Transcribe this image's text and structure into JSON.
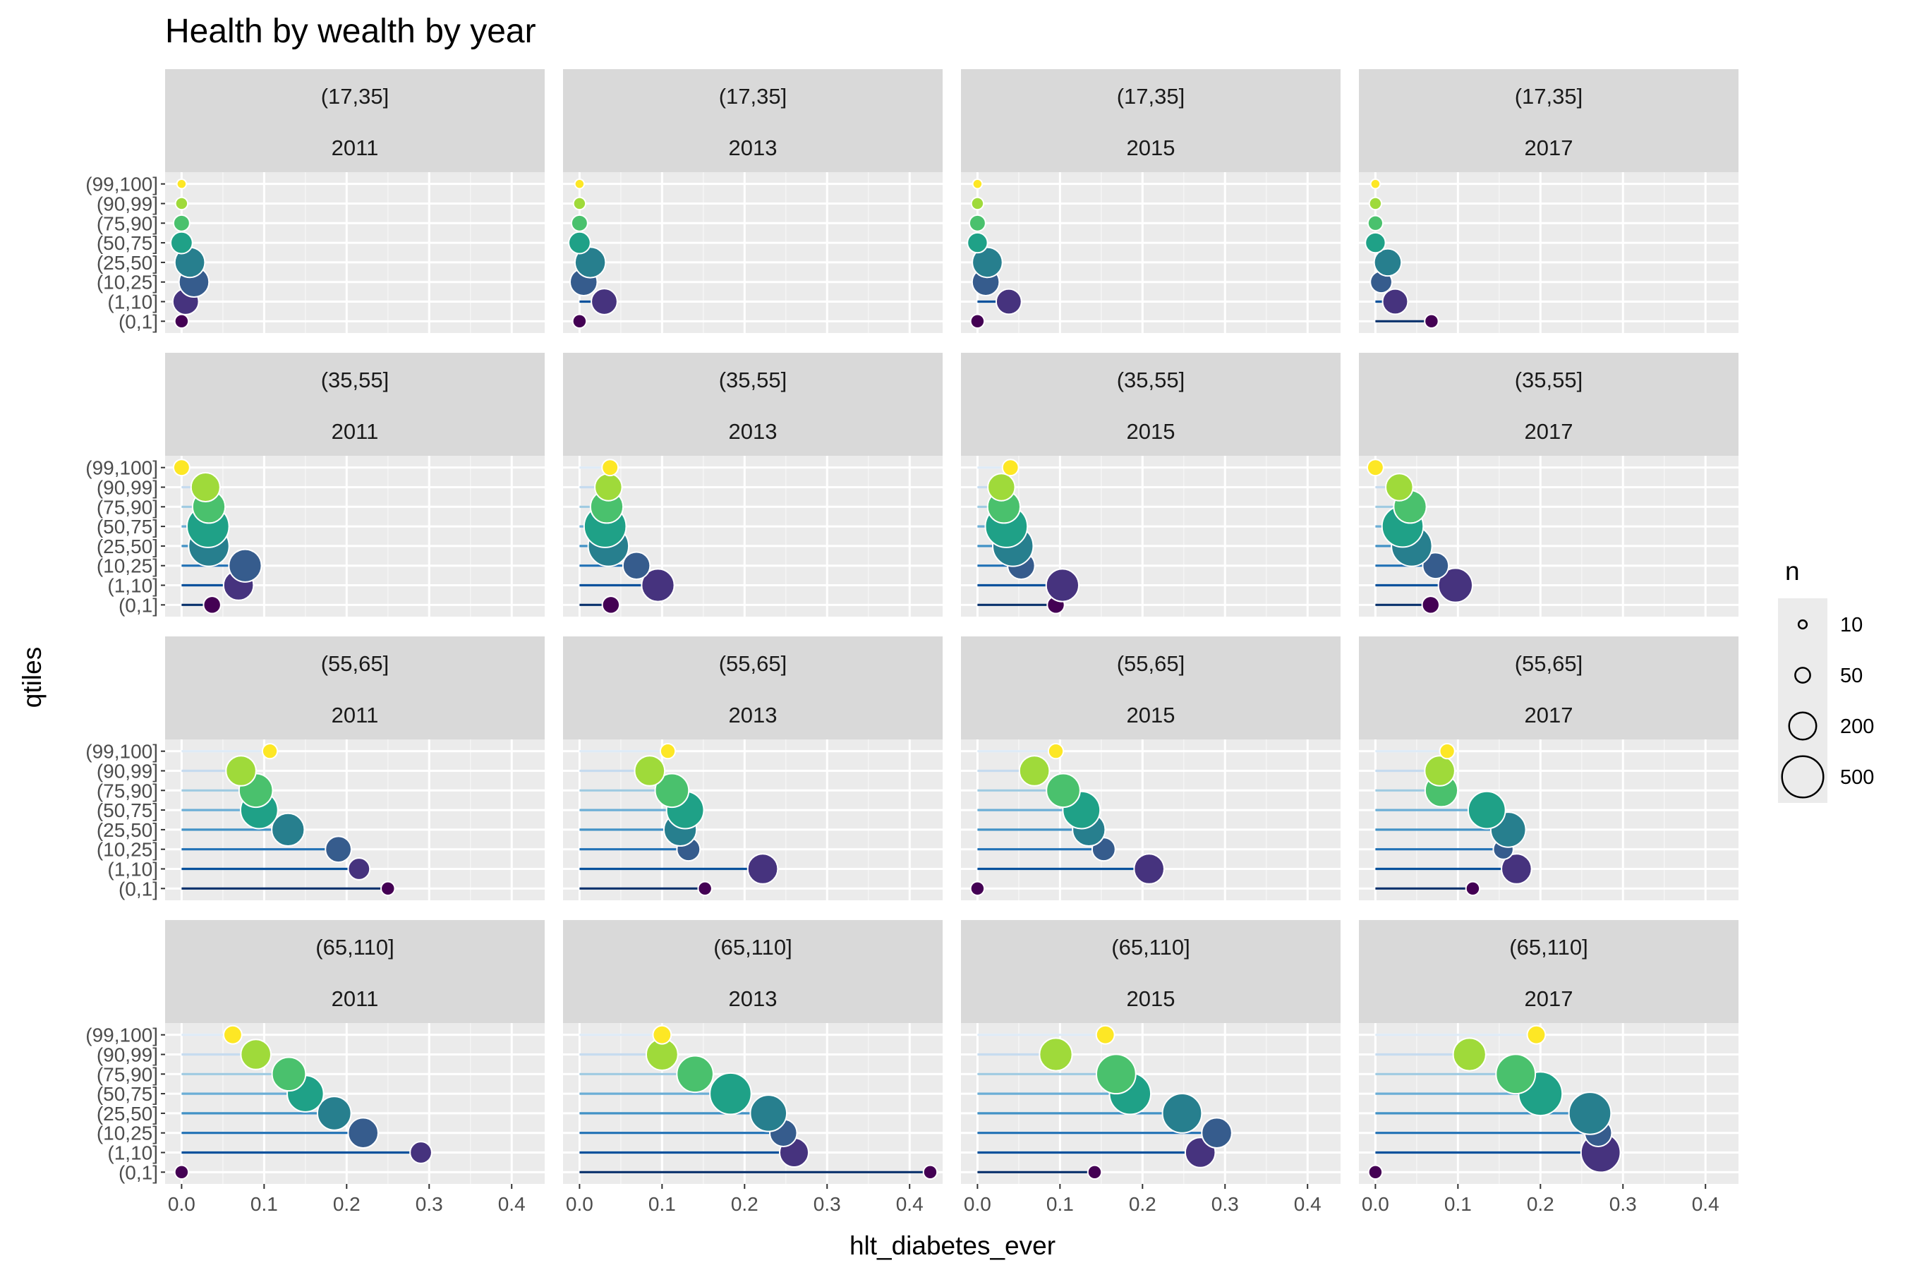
{
  "chart_data": {
    "type": "lollipop",
    "title": "Health by wealth by year",
    "xlabel": "hlt_diabetes_ever",
    "ylabel": "qtiles",
    "xlim": [
      -0.02,
      0.44
    ],
    "x_ticks": [
      "0.0",
      "0.1",
      "0.2",
      "0.3",
      "0.4"
    ],
    "x_tick_values": [
      0,
      0.1,
      0.2,
      0.3,
      0.4
    ],
    "qtiles": [
      "(0,1]",
      "(1,10]",
      "(10,25]",
      "(25,50]",
      "(50,75]",
      "(75,90]",
      "(90,99]",
      "(99,100]"
    ],
    "qtile_colors": [
      "#440154",
      "#46337E",
      "#365C8D",
      "#277F8E",
      "#1FA187",
      "#4AC16D",
      "#9FDA3A",
      "#FDE725"
    ],
    "segment_colors": [
      "#08306B",
      "#08519C",
      "#2171B5",
      "#4292C6",
      "#6BAED6",
      "#9ECAE1",
      "#C6DBEF",
      "#DEEBF7"
    ],
    "age_groups": [
      "(17,35]",
      "(35,55]",
      "(55,65]",
      "(65,110]"
    ],
    "years": [
      "2011",
      "2013",
      "2015",
      "2017"
    ],
    "grid": true,
    "legend": {
      "title": "n",
      "position": "right",
      "labels": [
        "10",
        "50",
        "200",
        "500"
      ],
      "values": [
        10,
        50,
        200,
        500
      ]
    },
    "panels": [
      {
        "age": "(17,35]",
        "year": "2011",
        "x": [
          0.0,
          0.005,
          0.015,
          0.01,
          0.0,
          0.0,
          0.0,
          0.0
        ],
        "n": [
          40,
          180,
          250,
          250,
          120,
          60,
          30,
          15
        ]
      },
      {
        "age": "(17,35]",
        "year": "2013",
        "x": [
          0.0,
          0.03,
          0.005,
          0.013,
          0.0,
          0.0,
          0.0,
          0.0
        ],
        "n": [
          40,
          180,
          200,
          260,
          120,
          60,
          30,
          15
        ]
      },
      {
        "age": "(17,35]",
        "year": "2015",
        "x": [
          0.0,
          0.038,
          0.01,
          0.012,
          0.0,
          0.0,
          0.0,
          0.0
        ],
        "n": [
          40,
          170,
          200,
          250,
          100,
          60,
          30,
          15
        ]
      },
      {
        "age": "(17,35]",
        "year": "2017",
        "x": [
          0.068,
          0.024,
          0.007,
          0.015,
          0.0,
          0.0,
          0.0,
          0.0
        ],
        "n": [
          40,
          170,
          120,
          200,
          100,
          50,
          30,
          15
        ]
      },
      {
        "age": "(35,55]",
        "year": "2011",
        "x": [
          0.037,
          0.069,
          0.077,
          0.033,
          0.032,
          0.033,
          0.029,
          0.0
        ],
        "n": [
          70,
          250,
          300,
          480,
          520,
          300,
          230,
          60
        ]
      },
      {
        "age": "(35,55]",
        "year": "2013",
        "x": [
          0.038,
          0.095,
          0.069,
          0.035,
          0.031,
          0.033,
          0.035,
          0.037
        ],
        "n": [
          70,
          300,
          200,
          480,
          520,
          300,
          200,
          60
        ]
      },
      {
        "age": "(35,55]",
        "year": "2015",
        "x": [
          0.095,
          0.103,
          0.053,
          0.043,
          0.035,
          0.032,
          0.029,
          0.04
        ],
        "n": [
          70,
          300,
          200,
          480,
          520,
          300,
          200,
          60
        ]
      },
      {
        "age": "(35,55]",
        "year": "2017",
        "x": [
          0.067,
          0.097,
          0.073,
          0.044,
          0.033,
          0.042,
          0.029,
          0.0
        ],
        "n": [
          70,
          330,
          180,
          480,
          500,
          300,
          200,
          60
        ]
      },
      {
        "age": "(55,65]",
        "year": "2011",
        "x": [
          0.25,
          0.215,
          0.19,
          0.129,
          0.094,
          0.09,
          0.072,
          0.107
        ],
        "n": [
          40,
          120,
          180,
          300,
          400,
          320,
          250,
          50
        ]
      },
      {
        "age": "(55,65]",
        "year": "2013",
        "x": [
          0.152,
          0.222,
          0.132,
          0.122,
          0.128,
          0.112,
          0.085,
          0.107
        ],
        "n": [
          40,
          250,
          140,
          300,
          400,
          320,
          250,
          50
        ]
      },
      {
        "age": "(55,65]",
        "year": "2015",
        "x": [
          0.0,
          0.208,
          0.153,
          0.135,
          0.126,
          0.104,
          0.069,
          0.095
        ],
        "n": [
          40,
          250,
          140,
          300,
          400,
          320,
          250,
          50
        ]
      },
      {
        "age": "(55,65]",
        "year": "2017",
        "x": [
          0.118,
          0.171,
          0.155,
          0.161,
          0.135,
          0.08,
          0.078,
          0.087
        ],
        "n": [
          40,
          250,
          100,
          350,
          400,
          300,
          250,
          50
        ]
      },
      {
        "age": "(65,110]",
        "year": "2011",
        "x": [
          0.0,
          0.29,
          0.22,
          0.185,
          0.15,
          0.13,
          0.09,
          0.062
        ],
        "n": [
          40,
          120,
          250,
          320,
          380,
          320,
          250,
          80
        ]
      },
      {
        "age": "(65,110]",
        "year": "2013",
        "x": [
          0.425,
          0.26,
          0.247,
          0.229,
          0.183,
          0.14,
          0.1,
          0.1
        ],
        "n": [
          40,
          230,
          200,
          380,
          500,
          380,
          280,
          80
        ]
      },
      {
        "age": "(65,110]",
        "year": "2015",
        "x": [
          0.142,
          0.27,
          0.29,
          0.248,
          0.185,
          0.168,
          0.095,
          0.155
        ],
        "n": [
          40,
          250,
          250,
          450,
          500,
          450,
          300,
          80
        ]
      },
      {
        "age": "(65,110]",
        "year": "2017",
        "x": [
          0.0,
          0.273,
          0.27,
          0.26,
          0.2,
          0.17,
          0.114,
          0.195
        ],
        "n": [
          40,
          450,
          200,
          520,
          560,
          450,
          300,
          80
        ]
      }
    ]
  }
}
